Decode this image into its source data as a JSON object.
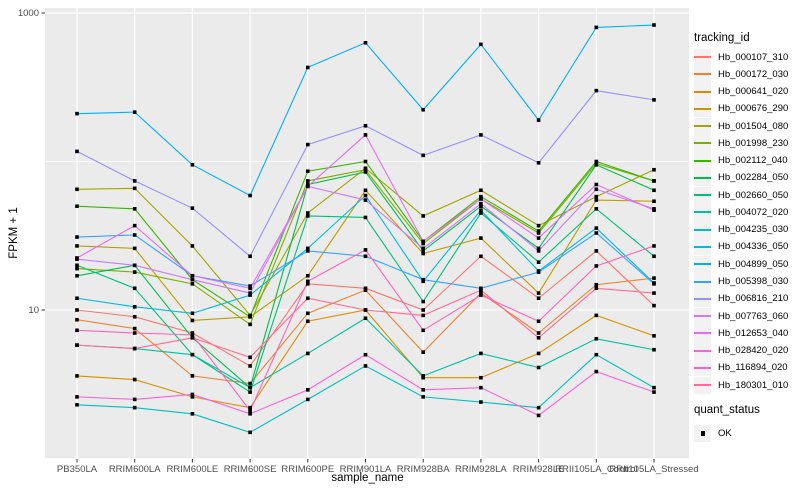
{
  "figure": {
    "background": "#FFFFFF",
    "panel_background": "#EBEBEB",
    "grid_color": "#FFFFFF",
    "tick_color": "#333333",
    "tick_label_color": "#4D4D4D",
    "point_color": "#000000",
    "legend_key_fill": "#F2F2F2"
  },
  "legend": {
    "tracking_title": "tracking_id",
    "quant_title": "quant_status",
    "quant_items": [
      {
        "label": "OK"
      }
    ]
  },
  "chart_data": {
    "type": "line",
    "title": "",
    "xlabel": "sample_name",
    "ylabel": "FPKM + 1",
    "y_scale": "log10",
    "ylim": [
      1,
      1080
    ],
    "grid": true,
    "legend_position": "right",
    "y_major_ticks": [
      {
        "value": 1000,
        "label": "1000"
      },
      {
        "value": 10,
        "label": "10"
      }
    ],
    "y_minor_ticks": [
      {
        "value": 100
      },
      {
        "value": 1
      }
    ],
    "categories": [
      "PB350LA",
      "RRIM600LA",
      "RRIM600LE",
      "RRIM600SE",
      "RRIM600PE",
      "RRIM901LA",
      "RRIM928BA",
      "RRIM928LA",
      "RRIM928LE",
      "RRII105LA_Control",
      "RRII105LA_Stressed"
    ],
    "series": [
      {
        "name": "Hb_000107_310",
        "color": "#F8766D",
        "values": [
          10,
          9,
          7,
          4.2,
          15,
          14,
          10,
          23,
          12,
          25,
          10.7
        ]
      },
      {
        "name": "Hb_000172_030",
        "color": "#EB8335",
        "values": [
          8.6,
          7.5,
          3.6,
          3.2,
          9.5,
          13.6,
          5.2,
          13,
          7,
          14.8,
          16.4
        ]
      },
      {
        "name": "Hb_000641_020",
        "color": "#D89000",
        "values": [
          3.6,
          3.4,
          2.6,
          2.2,
          8.4,
          10,
          3.5,
          3.5,
          5.1,
          9.2,
          6.7
        ]
      },
      {
        "name": "Hb_000676_290",
        "color": "#C09B00",
        "values": [
          27,
          26,
          8.5,
          9,
          17,
          64,
          24,
          30.5,
          13,
          55,
          54
        ]
      },
      {
        "name": "Hb_001504_080",
        "color": "#A3A500",
        "values": [
          65,
          66,
          27,
          9.2,
          45,
          90,
          43,
          64,
          37,
          58,
          88
        ]
      },
      {
        "name": "Hb_001998_230",
        "color": "#7CAE00",
        "values": [
          19,
          18,
          15,
          8,
          74,
          88,
          28,
          56,
          33,
          97,
          74
        ]
      },
      {
        "name": "Hb_002112_040",
        "color": "#39B600",
        "values": [
          50,
          48,
          16,
          9,
          86,
          100,
          29,
          58,
          34,
          100,
          74
        ]
      },
      {
        "name": "Hb_002284_050",
        "color": "#00BB4E",
        "values": [
          17,
          20,
          6.5,
          3,
          70,
          85,
          25,
          50,
          26,
          95,
          64
        ]
      },
      {
        "name": "Hb_002660_050",
        "color": "#00BF7D",
        "values": [
          20,
          14,
          5,
          2.8,
          43,
          42,
          11.4,
          45,
          21,
          48,
          23
        ]
      },
      {
        "name": "Hb_004072_020",
        "color": "#00C1A3",
        "values": [
          5.8,
          5.5,
          5,
          3,
          5.1,
          8.8,
          3.6,
          5.1,
          4.1,
          6.4,
          5.4
        ]
      },
      {
        "name": "Hb_004235_030",
        "color": "#00BFC4",
        "values": [
          2.3,
          2.2,
          2,
          1.5,
          2.5,
          4.2,
          2.6,
          2.4,
          2.2,
          5,
          3
        ]
      },
      {
        "name": "Hb_004336_050",
        "color": "#00BAE0",
        "values": [
          12,
          10.5,
          9.5,
          12.6,
          26,
          59,
          15.6,
          47,
          18.3,
          35.6,
          15.2
        ]
      },
      {
        "name": "Hb_004899_050",
        "color": "#00B0F6",
        "values": [
          210,
          215,
          95,
          59,
          430,
          630,
          223,
          615,
          190,
          800,
          830
        ]
      },
      {
        "name": "Hb_005398_030",
        "color": "#35A2FF",
        "values": [
          31,
          32,
          17,
          14.5,
          25,
          23,
          16,
          14,
          18,
          33,
          15
        ]
      },
      {
        "name": "Hb_006816_210",
        "color": "#9590FF",
        "values": [
          117,
          74,
          48.5,
          23,
          130,
          174,
          110,
          151,
          98,
          300,
          260
        ]
      },
      {
        "name": "Hb_007763_060",
        "color": "#C77CFF",
        "values": [
          22,
          20,
          16,
          13,
          68,
          55,
          26,
          52,
          25,
          65,
          48
        ]
      },
      {
        "name": "Hb_012653_040",
        "color": "#E76BF3",
        "values": [
          22.4,
          37,
          17,
          14,
          68,
          151,
          29,
          56,
          30.5,
          70,
          47
        ]
      },
      {
        "name": "Hb_028420_020",
        "color": "#FA62DB",
        "values": [
          2.6,
          2.5,
          2.7,
          2,
          2.9,
          5,
          2.9,
          3,
          1.95,
          3.85,
          2.8
        ]
      },
      {
        "name": "Hb_116894_020",
        "color": "#FF62BC",
        "values": [
          7.3,
          7,
          6.8,
          2.1,
          15.6,
          25.4,
          7.3,
          12.6,
          8.4,
          19.8,
          27
        ]
      },
      {
        "name": "Hb_180301_010",
        "color": "#FF6A98",
        "values": [
          5.8,
          5.5,
          6.5,
          4.8,
          12,
          10,
          9.2,
          13.6,
          6.5,
          14,
          13
        ]
      }
    ]
  }
}
